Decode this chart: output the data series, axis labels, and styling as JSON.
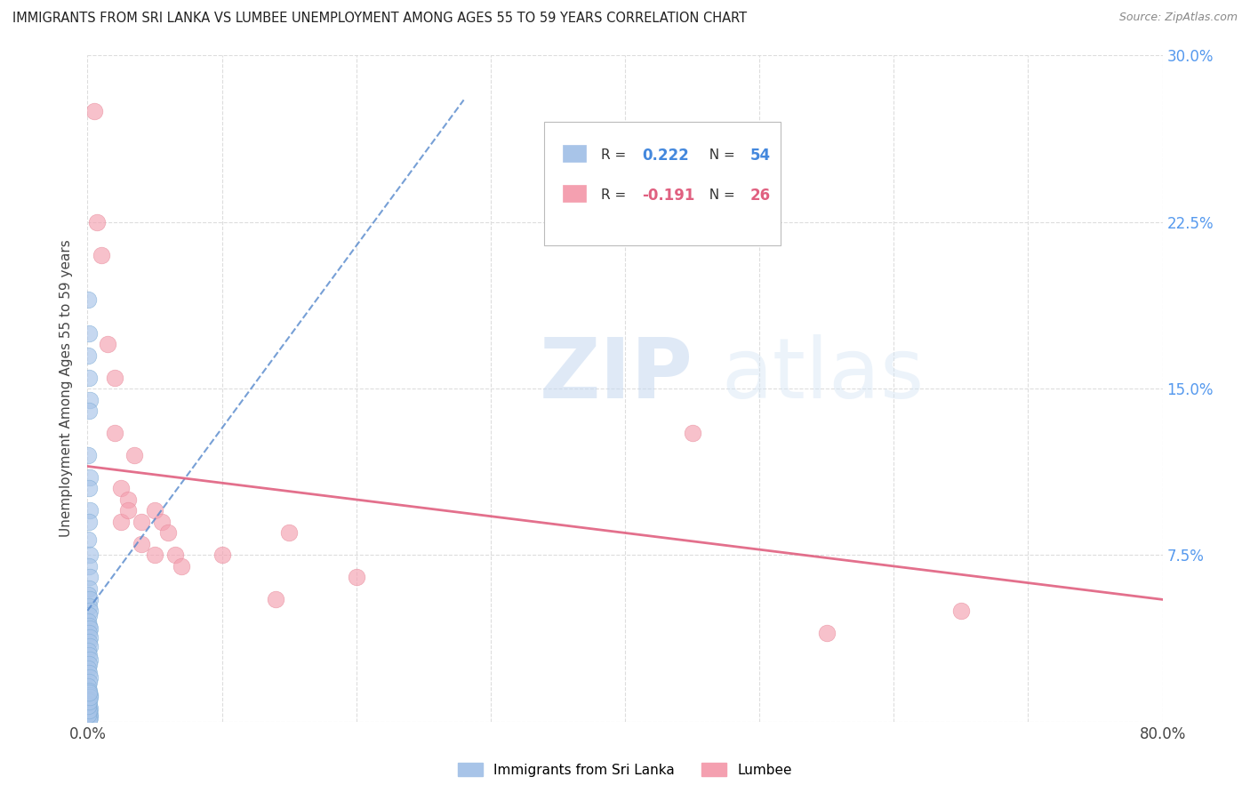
{
  "title": "IMMIGRANTS FROM SRI LANKA VS LUMBEE UNEMPLOYMENT AMONG AGES 55 TO 59 YEARS CORRELATION CHART",
  "source": "Source: ZipAtlas.com",
  "ylabel": "Unemployment Among Ages 55 to 59 years",
  "xlim": [
    0,
    0.8
  ],
  "ylim": [
    0,
    0.3
  ],
  "xticks": [
    0.0,
    0.1,
    0.2,
    0.3,
    0.4,
    0.5,
    0.6,
    0.7,
    0.8
  ],
  "xticklabels": [
    "0.0%",
    "",
    "",
    "",
    "",
    "",
    "",
    "",
    "80.0%"
  ],
  "yticks": [
    0.0,
    0.075,
    0.15,
    0.225,
    0.3
  ],
  "yticklabels_right": [
    "",
    "7.5%",
    "15.0%",
    "22.5%",
    "30.0%"
  ],
  "blue_R": "0.222",
  "blue_N": "54",
  "pink_R": "-0.191",
  "pink_N": "26",
  "blue_color": "#a8c4e8",
  "pink_color": "#f4a0b0",
  "blue_edge_color": "#7aaad4",
  "pink_edge_color": "#e8899a",
  "blue_trend_color": "#5588cc",
  "pink_trend_color": "#e06080",
  "watermark_zip": "ZIP",
  "watermark_atlas": "atlas",
  "legend_label_blue": "Immigrants from Sri Lanka",
  "legend_label_pink": "Lumbee",
  "blue_points_x": [
    0.0005,
    0.001,
    0.0005,
    0.001,
    0.0015,
    0.001,
    0.0005,
    0.002,
    0.001,
    0.0015,
    0.001,
    0.0005,
    0.002,
    0.001,
    0.0015,
    0.001,
    0.0005,
    0.002,
    0.001,
    0.0015,
    0.001,
    0.0005,
    0.001,
    0.0015,
    0.001,
    0.002,
    0.001,
    0.0015,
    0.0005,
    0.001,
    0.0015,
    0.001,
    0.0005,
    0.001,
    0.002,
    0.001,
    0.0005,
    0.001,
    0.0015,
    0.001,
    0.0005,
    0.001,
    0.0015,
    0.0005,
    0.001,
    0.002,
    0.0015,
    0.001,
    0.0005,
    0.001,
    0.0005,
    0.001,
    0.0015,
    0.001
  ],
  "blue_points_y": [
    0.19,
    0.175,
    0.165,
    0.155,
    0.145,
    0.14,
    0.12,
    0.11,
    0.105,
    0.095,
    0.09,
    0.082,
    0.075,
    0.07,
    0.065,
    0.06,
    0.057,
    0.055,
    0.052,
    0.05,
    0.048,
    0.045,
    0.043,
    0.042,
    0.04,
    0.038,
    0.036,
    0.034,
    0.032,
    0.03,
    0.028,
    0.026,
    0.024,
    0.022,
    0.02,
    0.018,
    0.016,
    0.014,
    0.012,
    0.01,
    0.008,
    0.007,
    0.006,
    0.005,
    0.004,
    0.003,
    0.002,
    0.001,
    0.003,
    0.005,
    0.007,
    0.009,
    0.011,
    0.013
  ],
  "pink_points_x": [
    0.005,
    0.007,
    0.01,
    0.015,
    0.02,
    0.02,
    0.025,
    0.025,
    0.03,
    0.03,
    0.035,
    0.04,
    0.04,
    0.05,
    0.05,
    0.055,
    0.06,
    0.065,
    0.07,
    0.1,
    0.14,
    0.15,
    0.2,
    0.45,
    0.55,
    0.65
  ],
  "pink_points_y": [
    0.275,
    0.225,
    0.21,
    0.17,
    0.155,
    0.13,
    0.105,
    0.09,
    0.1,
    0.095,
    0.12,
    0.09,
    0.08,
    0.095,
    0.075,
    0.09,
    0.085,
    0.075,
    0.07,
    0.075,
    0.055,
    0.085,
    0.065,
    0.13,
    0.04,
    0.05
  ],
  "blue_trend_x": [
    0.0,
    0.28
  ],
  "blue_trend_y": [
    0.05,
    0.28
  ],
  "pink_trend_x": [
    0.0,
    0.8
  ],
  "pink_trend_y": [
    0.115,
    0.055
  ]
}
